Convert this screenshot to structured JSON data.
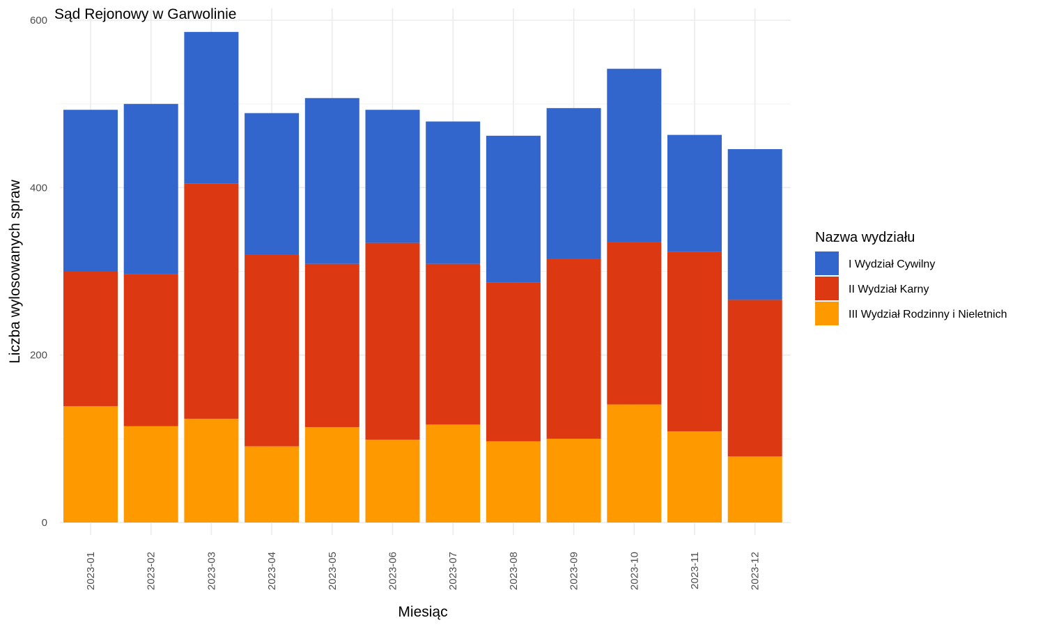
{
  "chart_data": {
    "type": "bar",
    "stacked": true,
    "title": "Sąd Rejonowy w Garwolinie",
    "xlabel": "Miesiąc",
    "ylabel": "Liczba wylosowanych spraw",
    "ylim": [
      0,
      600
    ],
    "yticks": [
      0,
      200,
      400,
      600
    ],
    "grid": true,
    "legend_title": "Nazwa wydziału",
    "legend_position": "right",
    "categories": [
      "2023-01",
      "2023-02",
      "2023-03",
      "2023-04",
      "2023-05",
      "2023-06",
      "2023-07",
      "2023-08",
      "2023-09",
      "2023-10",
      "2023-11",
      "2023-12"
    ],
    "series": [
      {
        "name": "III Wydział Rodzinny i Nieletnich",
        "color": "#FF9900",
        "values": [
          139,
          115,
          124,
          91,
          114,
          99,
          117,
          97,
          100,
          141,
          109,
          79
        ]
      },
      {
        "name": "II Wydział Karny",
        "color": "#DC3912",
        "values": [
          161,
          182,
          281,
          229,
          195,
          235,
          192,
          190,
          215,
          194,
          214,
          187
        ]
      },
      {
        "name": "I Wydział Cywilny",
        "color": "#3366CC",
        "values": [
          193,
          203,
          181,
          169,
          198,
          159,
          170,
          175,
          180,
          207,
          140,
          180
        ]
      }
    ],
    "legend_order": [
      "I Wydział Cywilny",
      "II Wydział Karny",
      "III Wydział Rodzinny i Nieletnich"
    ]
  }
}
